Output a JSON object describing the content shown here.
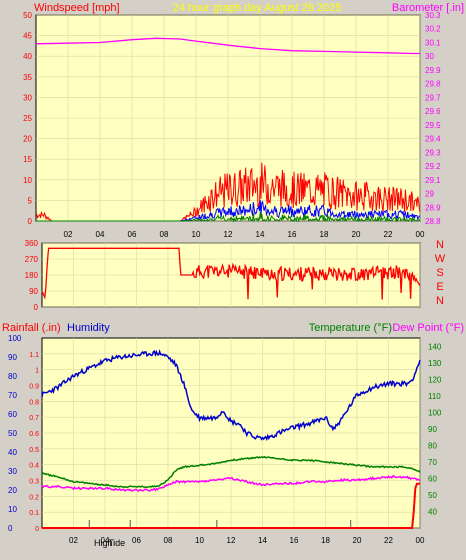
{
  "colors": {
    "background": "#d4d0c8",
    "plot_bg": "#ffffc0",
    "grid": "#d8d8a8",
    "wind": "#ff0000",
    "wind_avg": "#0000ff",
    "wind_low": "#008000",
    "barometer": "#ff00ff",
    "direction": "#ff0000",
    "rain": "#ff0000",
    "humidity": "#0000cc",
    "temperature": "#008000",
    "dewpoint": "#ff00ff",
    "title": "#ffff00"
  },
  "chart_data": [
    {
      "type": "line",
      "title": "24 hour graph day   August 28 2025",
      "left_axis_label": "Windspeed [mph]",
      "right_axis_label": "Barometer [.in]",
      "x_ticks": [
        "02",
        "04",
        "06",
        "08",
        "10",
        "12",
        "14",
        "16",
        "18",
        "20",
        "22",
        "00"
      ],
      "x_range_hours": [
        0,
        24
      ],
      "ylim_left": [
        0,
        50
      ],
      "left_ticks": [
        "0",
        "5",
        "10",
        "15",
        "20",
        "25",
        "30",
        "35",
        "40",
        "45",
        "50"
      ],
      "ylim_right": [
        28.8,
        30.3
      ],
      "right_ticks": [
        "28.8",
        "28.9",
        "29",
        "29.1",
        "29.2",
        "29.3",
        "29.4",
        "29.5",
        "29.6",
        "29.7",
        "29.8",
        "29.9",
        "30",
        "30.1",
        "30.2",
        "30.3"
      ],
      "grid": true,
      "series": [
        {
          "key": "barometer",
          "axis": "right",
          "x": [
            0,
            2,
            4,
            6,
            7.5,
            9,
            10,
            12,
            14,
            16,
            18,
            20,
            22,
            23.5,
            24
          ],
          "y": [
            30.09,
            30.095,
            30.1,
            30.12,
            30.13,
            30.125,
            30.11,
            30.08,
            30.055,
            30.04,
            30.035,
            30.03,
            30.025,
            30.02,
            30.02
          ]
        },
        {
          "key": "wind_gust",
          "axis": "left",
          "x": [
            0,
            0.5,
            1,
            9,
            10,
            11,
            12,
            13,
            14,
            15,
            16,
            17,
            18,
            19,
            20,
            21,
            22,
            23,
            24
          ],
          "y": [
            2,
            2,
            0,
            0,
            3,
            8,
            10,
            11,
            12,
            11,
            10,
            10,
            10,
            9,
            8,
            8,
            7,
            7,
            5
          ]
        },
        {
          "key": "wind_avg",
          "axis": "left",
          "x": [
            0,
            9,
            10,
            11,
            12,
            13,
            14,
            15,
            16,
            17,
            18,
            19,
            20,
            21,
            22,
            23,
            24
          ],
          "y": [
            0,
            0,
            1,
            2,
            3,
            3,
            4,
            3,
            3,
            3,
            3,
            2,
            2,
            2,
            2,
            2,
            1
          ]
        }
      ]
    },
    {
      "type": "line",
      "right_axis_label": "NWSEN",
      "right_letters": [
        "N",
        "W",
        "S",
        "E",
        "N"
      ],
      "ylim": [
        0,
        360
      ],
      "left_ticks": [
        "0",
        "90",
        "180",
        "270",
        "360"
      ],
      "x_range_hours": [
        0,
        24
      ],
      "grid": true,
      "series": [
        {
          "key": "wind_direction",
          "x": [
            0,
            0.2,
            0.4,
            8.7,
            8.8,
            9.5,
            10,
            12,
            14,
            16,
            18,
            20,
            22,
            23,
            23.5,
            24
          ],
          "y": [
            90,
            50,
            330,
            330,
            180,
            180,
            200,
            200,
            190,
            185,
            190,
            185,
            190,
            200,
            190,
            120
          ]
        }
      ]
    },
    {
      "type": "line",
      "left_axis_label_1": "Rainfall (.in)",
      "left_axis_label_2": "Humidity",
      "right_axis_label_1": "Temperature (°F)",
      "right_axis_label_2": "Dew Point (°F)",
      "x_ticks": [
        "02",
        "04",
        "06",
        "08",
        "10",
        "12",
        "14",
        "16",
        "18",
        "20",
        "22",
        "00"
      ],
      "x_range_hours": [
        0,
        24
      ],
      "ylim_rain": [
        0,
        1.2
      ],
      "rain_ticks": [
        "0",
        "0.1",
        "0.2",
        "0.3",
        "0.4",
        "0.5",
        "0.6",
        "0.7",
        "0.8",
        "0.9",
        "1",
        "1.1"
      ],
      "ylim_humidity": [
        0,
        100
      ],
      "humidity_ticks": [
        "0",
        "10",
        "20",
        "30",
        "40",
        "50",
        "60",
        "70",
        "80",
        "90",
        "100"
      ],
      "ylim_temp": [
        30,
        145
      ],
      "temp_ticks": [
        "40",
        "50",
        "60",
        "70",
        "80",
        "90",
        "100",
        "110",
        "120",
        "130",
        "140"
      ],
      "grid": true,
      "bottom_labels": [
        "High",
        "Tide"
      ],
      "tide_marks_hours": [
        3.0,
        5.6,
        11.1,
        19.6
      ],
      "series": [
        {
          "key": "humidity",
          "axis": "humidity",
          "x": [
            0,
            0.5,
            1,
            2,
            3,
            4,
            5,
            6,
            7,
            7.5,
            8,
            8.5,
            9,
            9.5,
            10,
            11,
            11.5,
            12,
            12.5,
            13,
            13.5,
            14,
            14.5,
            15,
            16,
            17,
            18,
            18.5,
            19,
            20,
            21,
            22,
            23,
            23.2,
            23.5,
            24
          ],
          "y": [
            70,
            72,
            74,
            80,
            84,
            88,
            90,
            91,
            92,
            92,
            90,
            86,
            76,
            62,
            58,
            58,
            62,
            56,
            55,
            50,
            48,
            47,
            48,
            50,
            53,
            55,
            58,
            52,
            57,
            70,
            74,
            76,
            76,
            76,
            78,
            88
          ]
        },
        {
          "key": "temperature",
          "axis": "temp",
          "x": [
            0,
            1,
            2,
            3,
            4,
            5,
            6,
            7,
            7.5,
            8,
            8.5,
            9,
            10,
            11,
            12,
            13,
            14,
            15,
            16,
            17,
            18,
            19,
            20,
            21,
            22,
            23,
            23.5,
            24
          ],
          "y": [
            63,
            61,
            58,
            57,
            56,
            55,
            55,
            55,
            56,
            59,
            65,
            67,
            68,
            69,
            71,
            72,
            73,
            72,
            71,
            71,
            70,
            69,
            68,
            67,
            67,
            67,
            66,
            64
          ]
        },
        {
          "key": "dewpoint",
          "axis": "temp",
          "x": [
            0,
            1,
            2,
            3,
            4,
            5,
            6,
            7,
            7.5,
            8,
            8.5,
            9,
            10,
            11,
            12,
            13,
            14,
            15,
            16,
            17,
            18,
            19,
            20,
            21,
            22,
            23,
            23.5,
            24
          ],
          "y": [
            55,
            55,
            54,
            54,
            54,
            53,
            53,
            53,
            54,
            56,
            58,
            58,
            58,
            59,
            60,
            58,
            56,
            57,
            57,
            58,
            58,
            59,
            59,
            60,
            61,
            61,
            60,
            59
          ]
        },
        {
          "key": "rainfall",
          "axis": "rain",
          "x": [
            0,
            23.5,
            23.6,
            23.7,
            23.8,
            24
          ],
          "y": [
            0,
            0,
            0.1,
            0.25,
            0.28,
            0.28
          ]
        }
      ]
    }
  ]
}
